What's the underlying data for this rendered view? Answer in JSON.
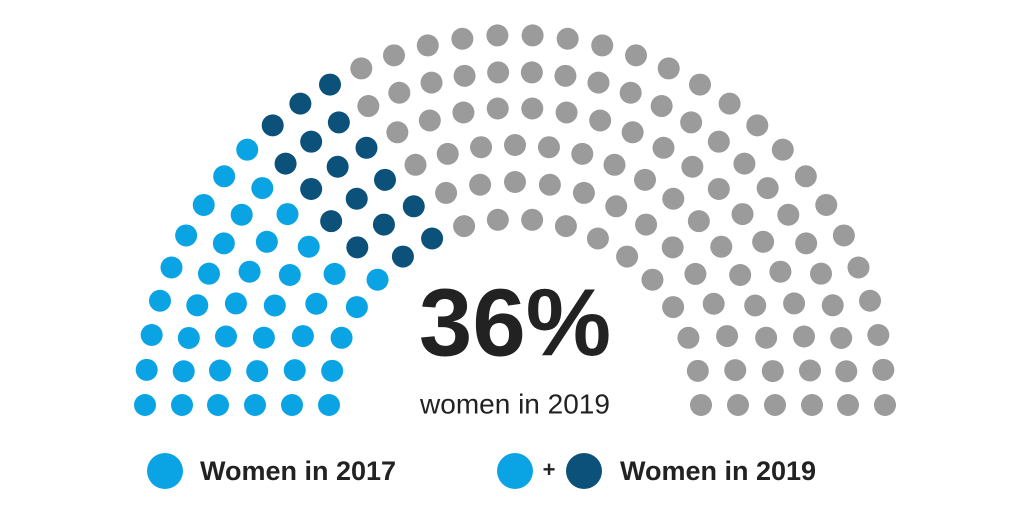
{
  "chart_data": {
    "type": "parliament",
    "annotation": {
      "value": 36,
      "label": "36%",
      "text": "women in 2019"
    },
    "series": [
      {
        "name": "Women in 2017",
        "color": "#0aa3e4",
        "values": [
          40
        ]
      },
      {
        "name": "Women in 2019",
        "color": "#0b5179",
        "values": [
          17
        ]
      },
      {
        "color": "#9b9b9b",
        "values": [
          101
        ]
      }
    ],
    "legend_join": "+"
  }
}
